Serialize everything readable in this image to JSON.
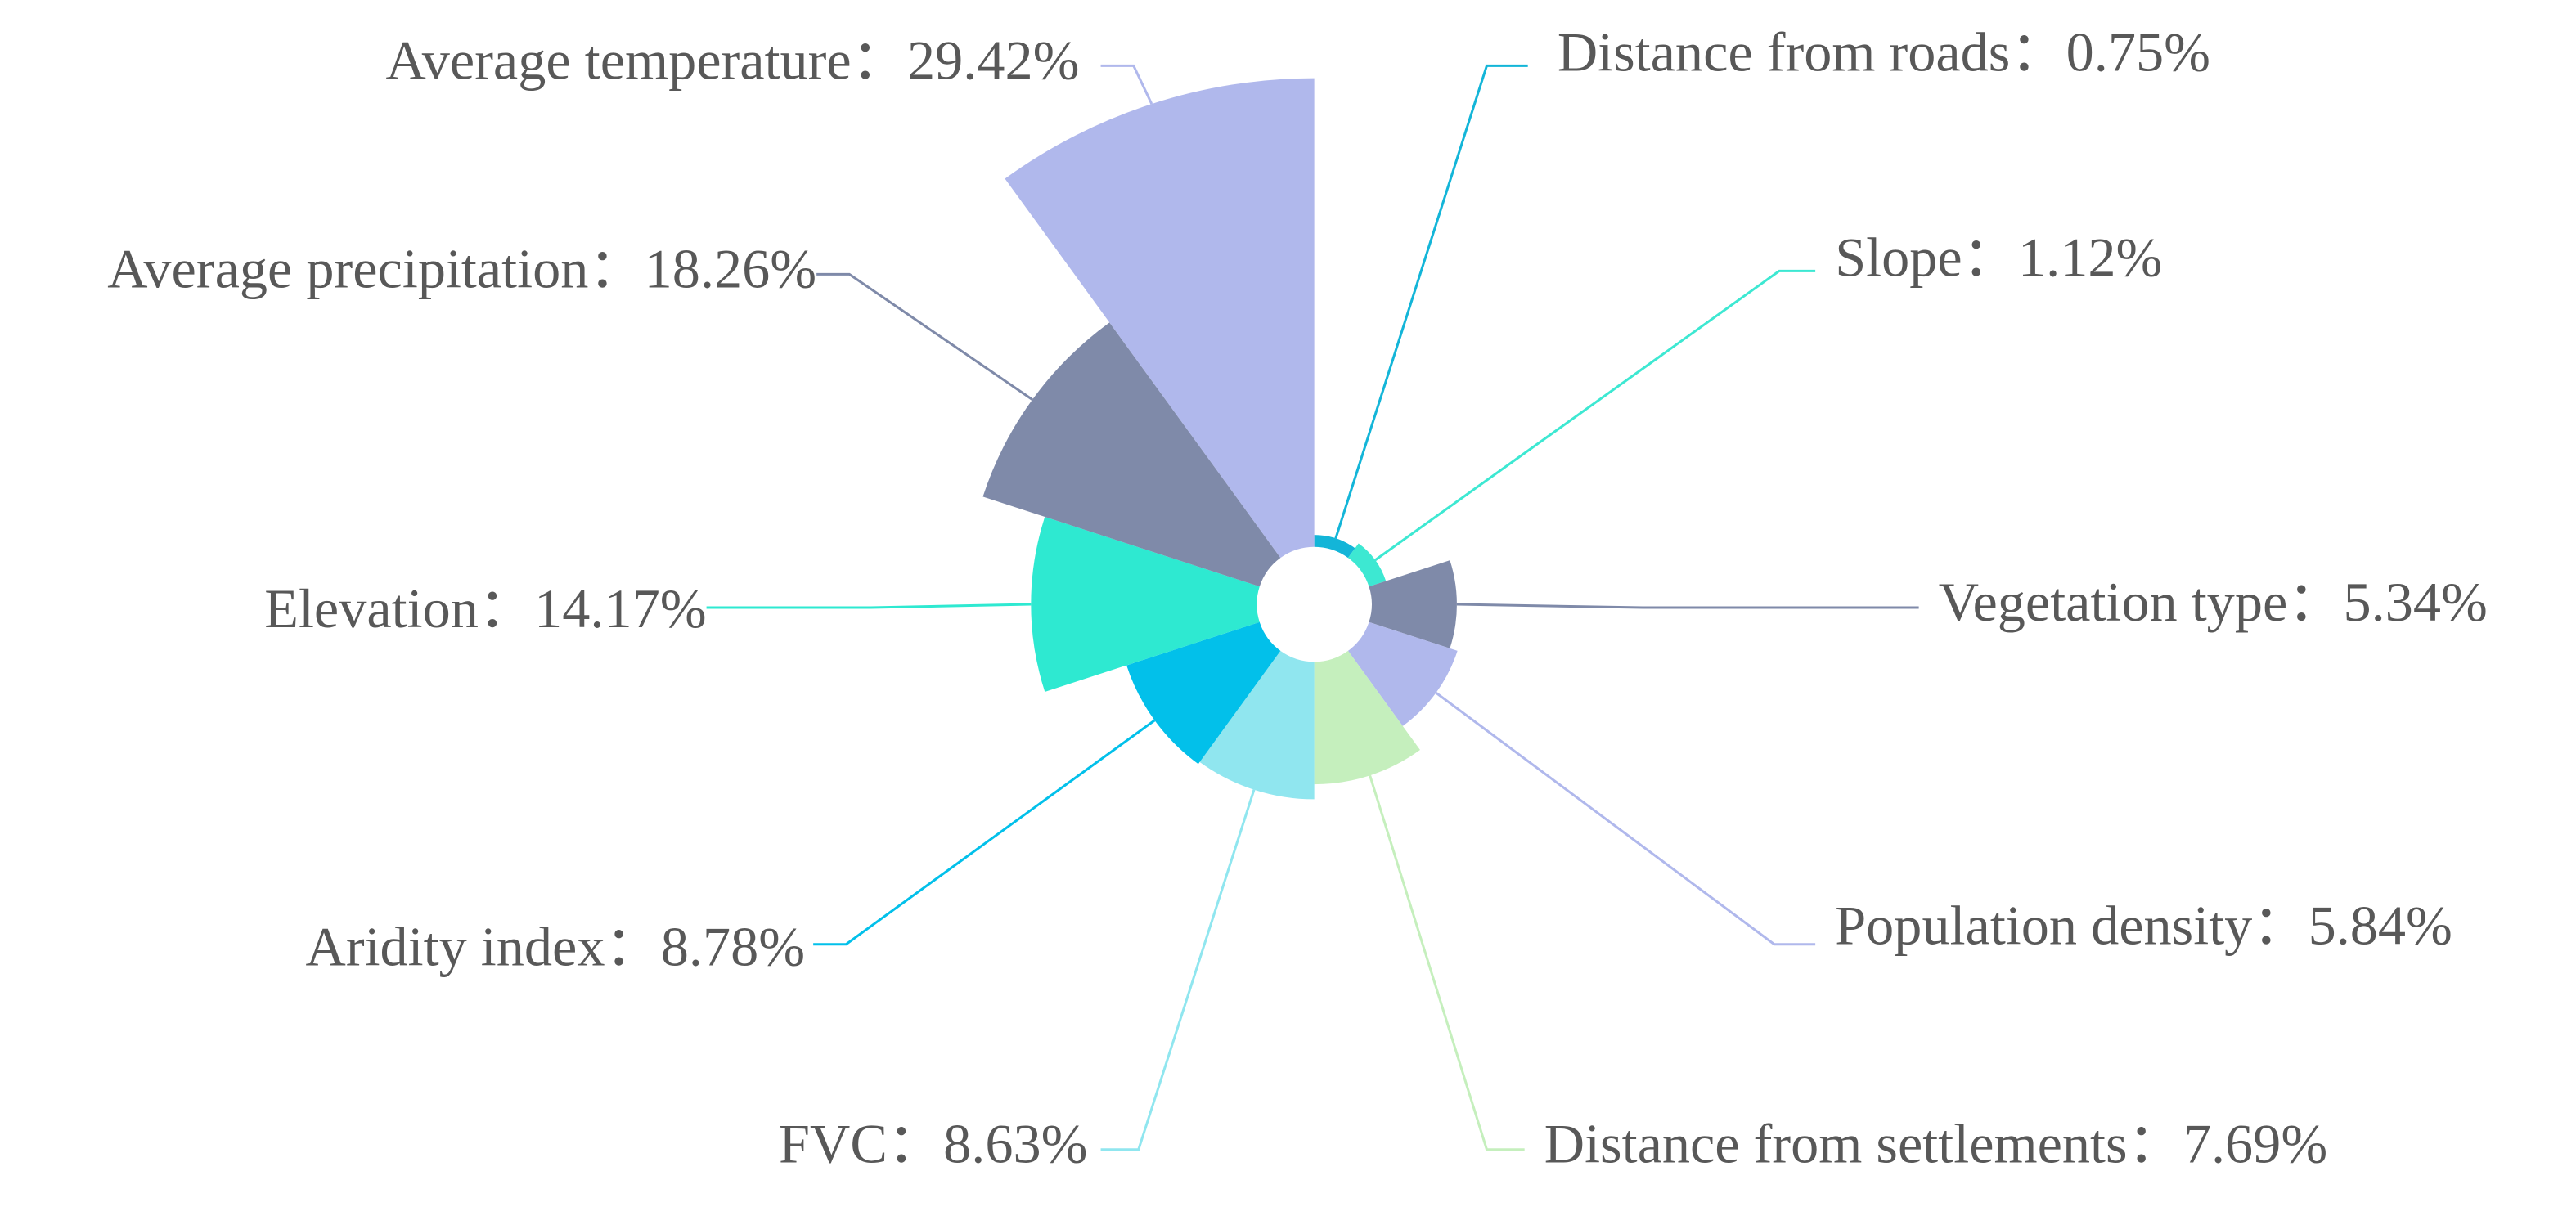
{
  "chart_data": {
    "type": "rose",
    "categories": [
      "Distance from roads",
      "Slope",
      "Vegetation type",
      "Population density",
      "Distance from settlements",
      "FVC",
      "Aridity index",
      "Elevation",
      "Average precipitation",
      "Average temperature"
    ],
    "values": [
      0.75,
      1.12,
      5.34,
      5.84,
      7.69,
      8.63,
      8.78,
      14.17,
      18.26,
      29.42
    ],
    "value_labels": [
      "0.75%",
      "1.12%",
      "5.34%",
      "5.84%",
      "7.69%",
      "8.63%",
      "8.78%",
      "14.17%",
      "18.26%",
      "29.42%"
    ],
    "separator": "：",
    "colors": [
      "#13b5d8",
      "#3de8d2",
      "#7f8aa9",
      "#b0b8ec",
      "#c5efbd",
      "#90e6ef",
      "#02c0ea",
      "#2ee9d1",
      "#7f8aa9",
      "#b0b8ec"
    ]
  }
}
